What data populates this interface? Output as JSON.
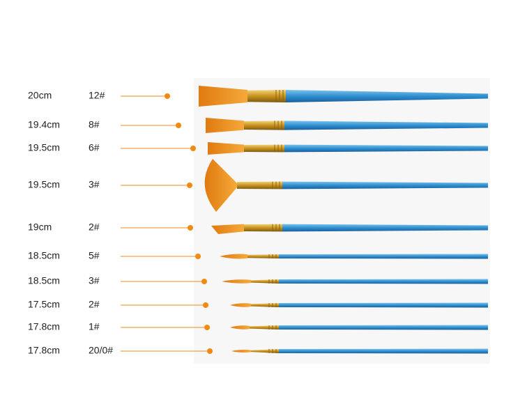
{
  "brushes": [
    {
      "length": "20cm",
      "size": "12#"
    },
    {
      "length": "19.4cm",
      "size": "8#"
    },
    {
      "length": "19.5cm",
      "size": "6#"
    },
    {
      "length": "19.5cm",
      "size": "3#"
    },
    {
      "length": "19cm",
      "size": "2#"
    },
    {
      "length": "18.5cm",
      "size": "5#"
    },
    {
      "length": "18.5cm",
      "size": "3#"
    },
    {
      "length": "17.5cm",
      "size": "2#"
    },
    {
      "length": "17.8cm",
      "size": "1#"
    },
    {
      "length": "17.8cm",
      "size": "20/0#"
    }
  ]
}
